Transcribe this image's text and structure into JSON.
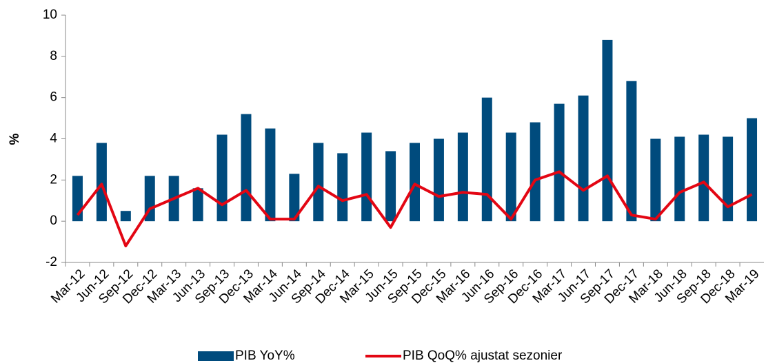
{
  "chart_data": {
    "type": "bar_line",
    "y_label": "%",
    "categories": [
      "Mar-12",
      "Jun-12",
      "Sep-12",
      "Dec-12",
      "Mar-13",
      "Jun-13",
      "Sep-13",
      "Dec-13",
      "Mar-14",
      "Jun-14",
      "Sep-14",
      "Dec-14",
      "Mar-15",
      "Jun-15",
      "Sep-15",
      "Dec-15",
      "Mar-16",
      "Jun-16",
      "Sep-16",
      "Dec-16",
      "Mar-17",
      "Jun-17",
      "Sep-17",
      "Dec-17",
      "Mar-18",
      "Jun-18",
      "Sep-18",
      "Dec-18",
      "Mar-19"
    ],
    "series": [
      {
        "name": "PIB YoY%",
        "type": "bar",
        "color": "#004b7d",
        "values": [
          2.2,
          3.8,
          0.5,
          2.2,
          2.2,
          1.6,
          4.2,
          5.2,
          4.5,
          2.3,
          3.8,
          3.3,
          4.3,
          3.4,
          3.8,
          4.0,
          4.3,
          6.0,
          4.3,
          4.8,
          5.7,
          6.1,
          8.8,
          6.8,
          4.0,
          4.1,
          4.2,
          4.1,
          5.0
        ]
      },
      {
        "name": "PIB QoQ% ajustat sezonier",
        "type": "line",
        "color": "#e30613",
        "values": [
          0.3,
          1.8,
          -1.2,
          0.6,
          1.1,
          1.6,
          0.8,
          1.5,
          0.1,
          0.1,
          1.7,
          1.0,
          1.3,
          -0.3,
          1.8,
          1.2,
          1.4,
          1.3,
          0.1,
          2.0,
          2.4,
          1.5,
          2.2,
          0.3,
          0.1,
          1.4,
          1.9,
          0.7,
          1.3
        ]
      }
    ],
    "ylim": [
      -2,
      10
    ],
    "yticks": [
      -2,
      0,
      2,
      4,
      6,
      8,
      10
    ],
    "grid": false,
    "legend": "bottom"
  }
}
